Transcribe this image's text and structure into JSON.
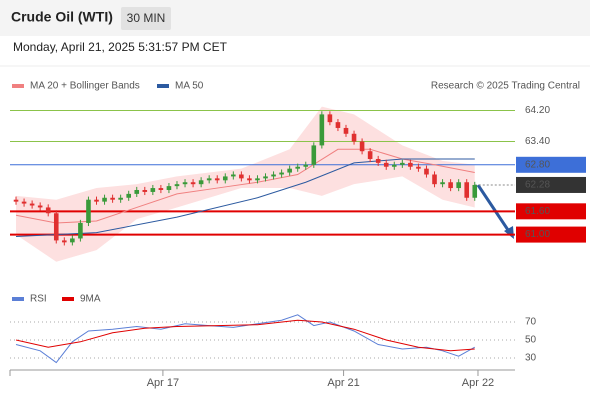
{
  "chart_data": [
    {
      "type": "candlestick",
      "title": "Crude Oil (WTI)",
      "timeframe": "30 MIN",
      "date": "Monday, April 21, 2025 5:31:57 PM CET",
      "credit": "Research © 2025 Trading Central",
      "xlim": [
        -0.5,
        62
      ],
      "ylim": [
        59.7,
        64.6
      ],
      "up_color": "#3a9a3a",
      "down_color": "#e03030",
      "open": [
        61.9,
        61.85,
        61.8,
        61.75,
        61.7,
        61.55,
        60.85,
        60.8,
        60.9,
        61.3,
        61.9,
        61.85,
        61.95,
        61.9,
        61.95,
        62.05,
        62.15,
        62.1,
        62.2,
        62.15,
        62.25,
        62.3,
        62.35,
        62.3,
        62.4,
        62.45,
        62.4,
        62.5,
        62.55,
        62.45,
        62.4,
        62.45,
        62.5,
        62.55,
        62.6,
        62.7,
        62.75,
        62.8,
        63.3,
        64.1,
        63.9,
        63.75,
        63.6,
        63.4,
        63.15,
        62.95,
        62.85,
        62.75,
        62.8,
        62.85,
        62.75,
        62.7,
        62.55,
        62.3,
        62.35,
        62.2,
        62.35,
        61.95
      ],
      "high": [
        61.98,
        61.93,
        61.88,
        61.83,
        61.78,
        61.63,
        60.93,
        60.98,
        61.38,
        61.98,
        61.98,
        62.03,
        62.03,
        62.03,
        62.13,
        62.23,
        62.23,
        62.28,
        62.28,
        62.33,
        62.38,
        62.43,
        62.43,
        62.48,
        62.53,
        62.53,
        62.58,
        62.63,
        62.63,
        62.53,
        62.53,
        62.58,
        62.63,
        62.68,
        62.78,
        62.83,
        62.88,
        63.38,
        64.18,
        64.18,
        63.98,
        63.83,
        63.68,
        63.48,
        63.23,
        63.03,
        62.93,
        62.88,
        62.93,
        62.93,
        62.83,
        62.78,
        62.63,
        62.43,
        62.43,
        62.43,
        62.43,
        62.36
      ],
      "low": [
        61.77,
        61.72,
        61.67,
        61.62,
        61.47,
        60.77,
        60.72,
        60.72,
        60.82,
        61.22,
        61.77,
        61.77,
        61.82,
        61.82,
        61.87,
        61.97,
        62.02,
        62.02,
        62.07,
        62.07,
        62.17,
        62.22,
        62.22,
        62.22,
        62.32,
        62.32,
        62.32,
        62.42,
        62.37,
        62.32,
        62.32,
        62.37,
        62.42,
        62.47,
        62.52,
        62.62,
        62.67,
        62.72,
        63.22,
        63.82,
        63.67,
        63.52,
        63.32,
        63.07,
        62.87,
        62.77,
        62.67,
        62.67,
        62.72,
        62.67,
        62.62,
        62.47,
        62.22,
        62.22,
        62.12,
        62.12,
        61.87,
        61.87
      ],
      "close": [
        61.85,
        61.8,
        61.75,
        61.7,
        61.55,
        60.85,
        60.8,
        60.9,
        61.3,
        61.9,
        61.85,
        61.95,
        61.9,
        61.95,
        62.05,
        62.15,
        62.1,
        62.2,
        62.15,
        62.25,
        62.3,
        62.35,
        62.3,
        62.4,
        62.45,
        62.4,
        62.5,
        62.55,
        62.45,
        62.4,
        62.45,
        62.5,
        62.55,
        62.6,
        62.7,
        62.75,
        62.8,
        63.3,
        64.1,
        63.9,
        63.75,
        63.6,
        63.4,
        63.15,
        62.95,
        62.85,
        62.75,
        62.8,
        62.85,
        62.75,
        62.7,
        62.55,
        62.3,
        62.35,
        62.2,
        62.35,
        61.95,
        62.28
      ],
      "bands": {
        "color": "#fde0e0",
        "x": [
          0,
          5,
          10,
          15,
          20,
          28,
          34,
          38,
          42,
          48,
          53,
          57
        ],
        "upper": [
          62.0,
          61.9,
          62.2,
          62.3,
          62.5,
          62.7,
          63.2,
          64.3,
          64.1,
          63.3,
          62.9,
          62.8
        ],
        "lower": [
          61.0,
          60.3,
          60.6,
          61.4,
          61.7,
          62.2,
          62.2,
          62.0,
          62.3,
          62.5,
          61.9,
          61.7
        ]
      },
      "series": [
        {
          "name": "MA 20 + Bollinger Bands",
          "color": "#f08080",
          "x": [
            0,
            5,
            10,
            15,
            20,
            25,
            30,
            35,
            40,
            44,
            48,
            52,
            57
          ],
          "values": [
            61.5,
            61.3,
            61.35,
            61.7,
            62.05,
            62.2,
            62.35,
            62.55,
            63.2,
            63.2,
            62.95,
            62.8,
            62.6
          ]
        },
        {
          "name": "MA 50",
          "color": "#2c5aa0",
          "x": [
            0,
            10,
            20,
            30,
            36,
            42,
            48,
            57
          ],
          "values": [
            60.95,
            61.05,
            61.45,
            61.95,
            62.35,
            62.85,
            62.95,
            62.95
          ]
        }
      ],
      "levels": [
        {
          "value": 64.2,
          "label": "64.20",
          "color": "#8bc34a",
          "style": "text"
        },
        {
          "value": 63.4,
          "label": "63.40",
          "color": "#8bc34a",
          "style": "text"
        },
        {
          "value": 62.8,
          "label": "62.80",
          "color": "#3d6fd8",
          "style": "box"
        },
        {
          "value": 62.28,
          "label": "62.28",
          "color": "#333333",
          "style": "current"
        },
        {
          "value": 61.6,
          "label": "61.60",
          "color": "#e00000",
          "style": "box"
        },
        {
          "value": 61.0,
          "label": "61.00",
          "color": "#e00000",
          "style": "box"
        }
      ]
    },
    {
      "type": "line",
      "xlim": [
        -0.5,
        62
      ],
      "ylim": [
        20,
        80
      ],
      "yticks": [
        70,
        50,
        30
      ],
      "xticks": [
        {
          "value": 18.25,
          "label": "Apr 17"
        },
        {
          "value": 40.7,
          "label": "Apr 21"
        },
        {
          "value": 57.4,
          "label": "Apr 22"
        }
      ],
      "series": [
        {
          "name": "RSI",
          "color": "#5b7fd6",
          "x": [
            0,
            3,
            5,
            7,
            9,
            12,
            15,
            18,
            21,
            24,
            27,
            30,
            33,
            35,
            37,
            39,
            42,
            45,
            48,
            51,
            53,
            55,
            57
          ],
          "values": [
            45,
            38,
            25,
            48,
            60,
            62,
            65,
            62,
            68,
            66,
            64,
            68,
            72,
            78,
            66,
            70,
            60,
            45,
            40,
            42,
            38,
            32,
            42
          ]
        },
        {
          "name": "9MA",
          "color": "#e00000",
          "x": [
            0,
            4,
            8,
            12,
            16,
            20,
            25,
            30,
            35,
            38,
            42,
            46,
            50,
            54,
            57
          ],
          "values": [
            50,
            42,
            48,
            58,
            63,
            65,
            66,
            67,
            72,
            70,
            62,
            50,
            42,
            38,
            40
          ]
        }
      ]
    }
  ]
}
